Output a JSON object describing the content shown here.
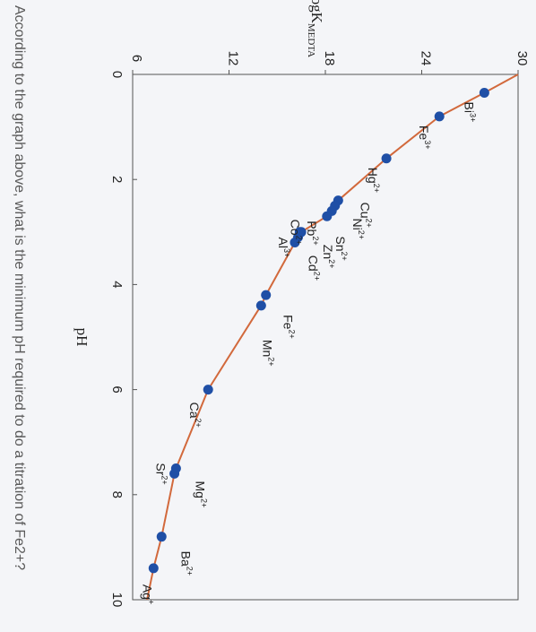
{
  "question": "According to the graph above, what is the minimum pH required to do a titration of Fe2+?",
  "chart_data": {
    "type": "scatter",
    "xlabel": "pH",
    "ylabel_main": "logK",
    "ylabel_sub": "MEDTA",
    "xlim": [
      0,
      10
    ],
    "ylim": [
      6,
      30
    ],
    "x_ticks": [
      0,
      2,
      4,
      6,
      8,
      10
    ],
    "y_ticks": [
      6,
      12,
      18,
      24,
      30
    ],
    "curve_color": "#d2693c",
    "point_color": "#1f4fa6",
    "points": [
      {
        "label": "Bi3+",
        "ion": "Bi",
        "charge": "3+",
        "x": 0.35,
        "y": 27.9
      },
      {
        "label": "Fe3+",
        "ion": "Fe",
        "charge": "3+",
        "x": 0.8,
        "y": 25.1
      },
      {
        "label": "Hg2+",
        "ion": "Hg",
        "charge": "2+",
        "x": 1.6,
        "y": 21.8
      },
      {
        "label": "Cu2+",
        "ion": "Cu",
        "charge": "2+",
        "x": 2.4,
        "y": 18.8
      },
      {
        "label": "Ni2+",
        "ion": "Ni",
        "charge": "2+",
        "x": 2.5,
        "y": 18.6
      },
      {
        "label": "Sn2+",
        "ion": "Sn",
        "charge": "2+",
        "x": 2.6,
        "y": 18.4
      },
      {
        "label": "Pb2+",
        "ion": "Pb",
        "charge": "2+",
        "x": 2.7,
        "y": 18.1
      },
      {
        "label": "Zn2+",
        "ion": "Zn",
        "charge": "2+",
        "x": 3.0,
        "y": 16.5
      },
      {
        "label": "Cd2+",
        "ion": "Cd",
        "charge": "2+",
        "x": 3.0,
        "y": 16.4
      },
      {
        "label": "Co2+",
        "ion": "Co",
        "charge": "2+",
        "x": 3.1,
        "y": 16.3
      },
      {
        "label": "Al3+",
        "ion": "Al",
        "charge": "3+",
        "x": 3.2,
        "y": 16.1
      },
      {
        "label": "Fe2+",
        "ion": "Fe",
        "charge": "2+",
        "x": 4.2,
        "y": 14.3
      },
      {
        "label": "Mn2+",
        "ion": "Mn",
        "charge": "2+",
        "x": 4.4,
        "y": 14.0
      },
      {
        "label": "Ca2+",
        "ion": "Ca",
        "charge": "2+",
        "x": 6.0,
        "y": 10.7
      },
      {
        "label": "Mg2+",
        "ion": "Mg",
        "charge": "2+",
        "x": 7.5,
        "y": 8.7
      },
      {
        "label": "Sr2+",
        "ion": "Sr",
        "charge": "2+",
        "x": 7.6,
        "y": 8.6
      },
      {
        "label": "Ba2+",
        "ion": "Ba",
        "charge": "2+",
        "x": 8.8,
        "y": 7.8
      },
      {
        "label": "Ag+",
        "ion": "Ag",
        "charge": "+",
        "x": 9.4,
        "y": 7.3
      }
    ]
  }
}
